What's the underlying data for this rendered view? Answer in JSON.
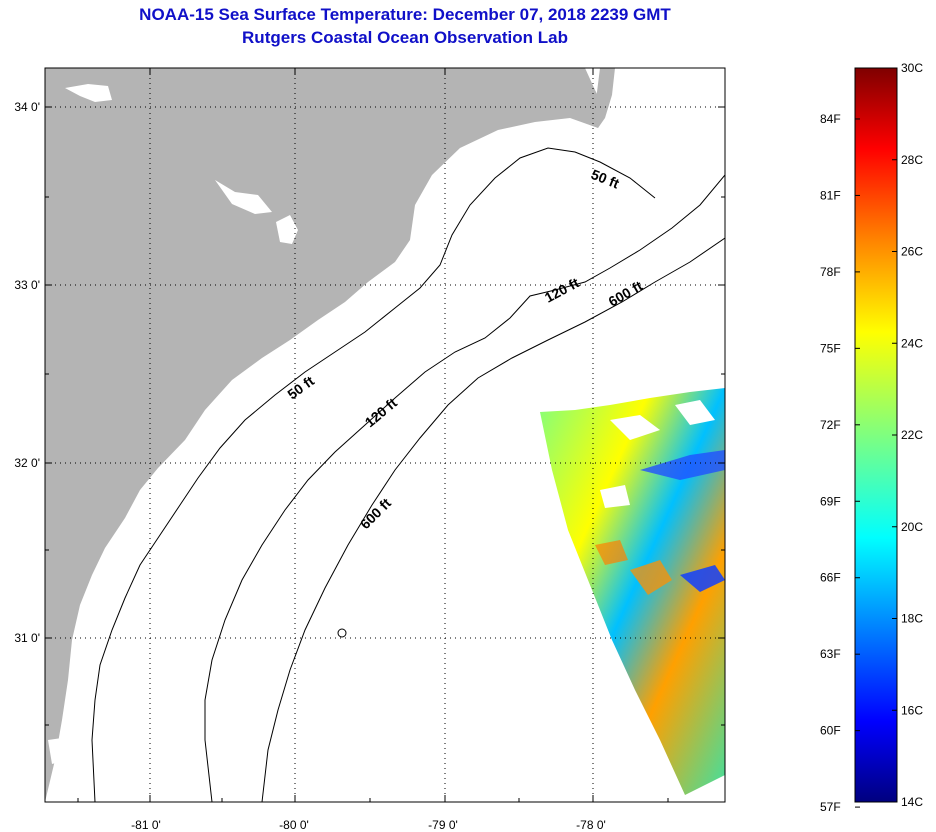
{
  "title_line1": "NOAA-15 Sea Surface Temperature:  December 07, 2018 2239 GMT",
  "title_line2": "Rutgers Coastal Ocean Observation Lab",
  "lon_ticks": [
    "-81 0'",
    "-80 0'",
    "-79 0'",
    "-78 0'"
  ],
  "lat_ticks": [
    "34 0'",
    "33 0'",
    "32 0'",
    "31 0'"
  ],
  "contour_labels": [
    "50 ft",
    "120 ft",
    "600 ft",
    "50 ft",
    "120 ft",
    "600 ft"
  ],
  "colorbar": {
    "fahrenheit": [
      "84F",
      "81F",
      "78F",
      "75F",
      "72F",
      "69F",
      "66F",
      "63F",
      "60F",
      "57F"
    ],
    "celsius": [
      "30C",
      "28C",
      "26C",
      "24C",
      "22C",
      "20C",
      "18C",
      "16C",
      "14C"
    ]
  },
  "colors": {
    "land": "#b4b4b4",
    "title": "#1010c8",
    "colormap": [
      "#00007f",
      "#0000ff",
      "#007fff",
      "#00ffff",
      "#7fff7f",
      "#ffff00",
      "#ff7f00",
      "#ff0000",
      "#7f0000"
    ]
  }
}
